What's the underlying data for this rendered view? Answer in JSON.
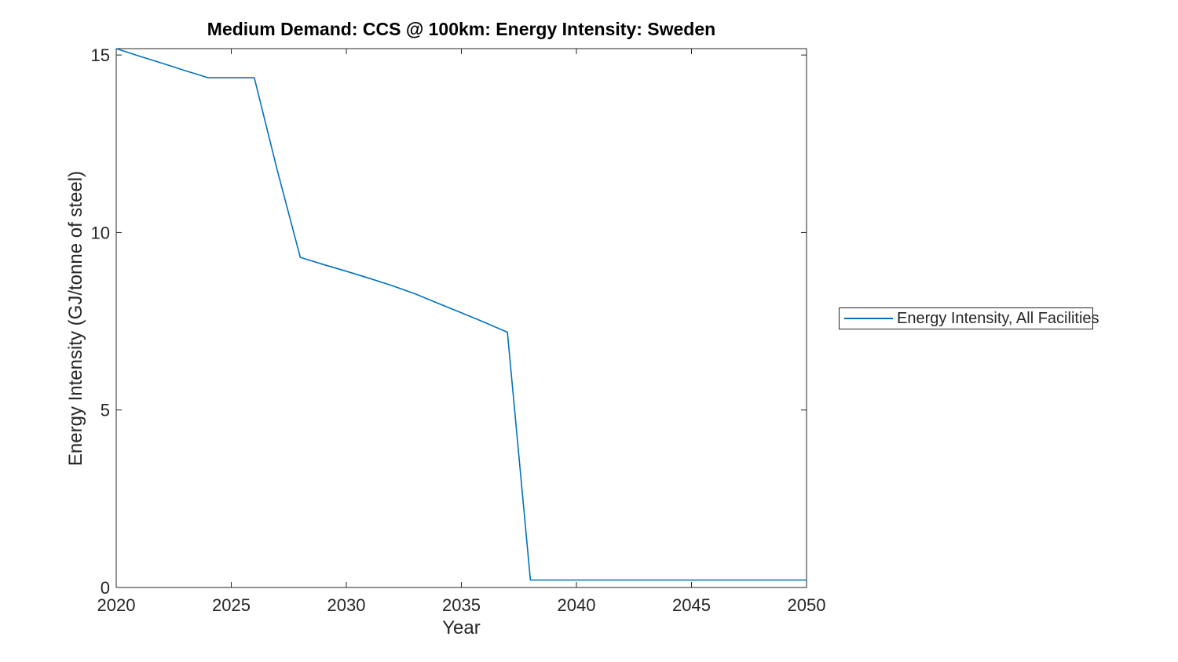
{
  "chart_data": {
    "type": "line",
    "title": "Medium Demand: CCS @ 100km: Energy Intensity: Sweden",
    "xlabel": "Year",
    "ylabel": "Energy Intensity (GJ/tonne of steel)",
    "xlim": [
      2020,
      2050
    ],
    "ylim": [
      0,
      15.18
    ],
    "x_ticks": [
      2020,
      2025,
      2030,
      2035,
      2040,
      2045,
      2050
    ],
    "y_ticks": [
      0,
      5,
      10,
      15
    ],
    "grid": false,
    "legend_position": "outside-right",
    "colors": {
      "axis": "#262626",
      "line": "#0072BD",
      "background": "#ffffff"
    },
    "series": [
      {
        "name": "Energy Intensity, All Facilities",
        "color": "#0072BD",
        "x": [
          2020,
          2021,
          2022,
          2023,
          2024,
          2025,
          2026,
          2027,
          2028,
          2029,
          2030,
          2031,
          2032,
          2033,
          2034,
          2035,
          2036,
          2037,
          2038,
          2039,
          2040,
          2041,
          2042,
          2043,
          2044,
          2045,
          2046,
          2047,
          2048,
          2049,
          2050
        ],
        "y": [
          15.18,
          14.97,
          14.77,
          14.56,
          14.36,
          14.36,
          14.36,
          11.75,
          9.3,
          9.1,
          8.91,
          8.71,
          8.5,
          8.27,
          8.0,
          7.74,
          7.47,
          7.19,
          0.21,
          0.21,
          0.21,
          0.21,
          0.21,
          0.21,
          0.21,
          0.21,
          0.21,
          0.21,
          0.21,
          0.21,
          0.21
        ]
      }
    ]
  }
}
